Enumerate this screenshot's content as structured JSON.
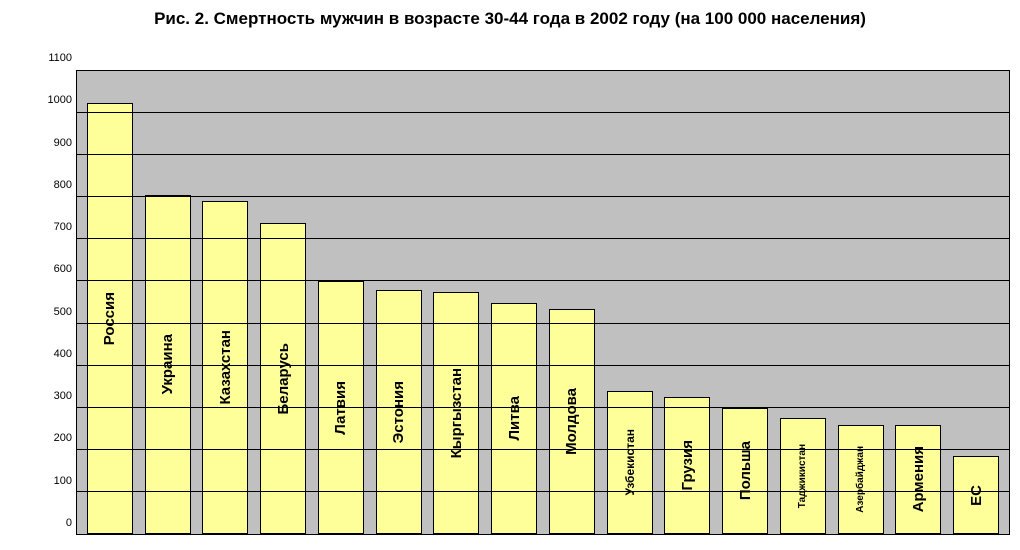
{
  "chart": {
    "type": "bar",
    "title": "Рис. 2. Смертность мужчин в возрасте 30-44 года в 2002 году (на 100 000 населения)",
    "title_fontsize": 17,
    "title_fontweight": "bold",
    "title_color": "#000000",
    "background_color": "#ffffff",
    "plot_background_color": "#c0c0c0",
    "grid_color": "#000000",
    "axis_color": "#000000",
    "ylim": [
      0,
      1100
    ],
    "ytick_step": 100,
    "ytick_fontsize": 11,
    "bar_color": "#ffff99",
    "bar_border_color": "#000000",
    "bar_width": 0.8,
    "bar_label_fontweight": "bold",
    "bar_label_color": "#000000",
    "categories": [
      "Россия",
      "Украина",
      "Казахстан",
      "Беларусь",
      "Латвия",
      "Эстония",
      "Кыргызстан",
      "Литва",
      "Молдова",
      "Узбекистан",
      "Грузия",
      "Польша",
      "Таджикистан",
      "Азербайджан",
      "Армения",
      "ЕС"
    ],
    "values": [
      1025,
      805,
      790,
      740,
      600,
      580,
      575,
      550,
      535,
      340,
      325,
      300,
      275,
      260,
      260,
      185
    ],
    "label_fontsizes": [
      15,
      15,
      15,
      15,
      15,
      15,
      15,
      15,
      15,
      12,
      15,
      15,
      10,
      10,
      15,
      15
    ]
  }
}
